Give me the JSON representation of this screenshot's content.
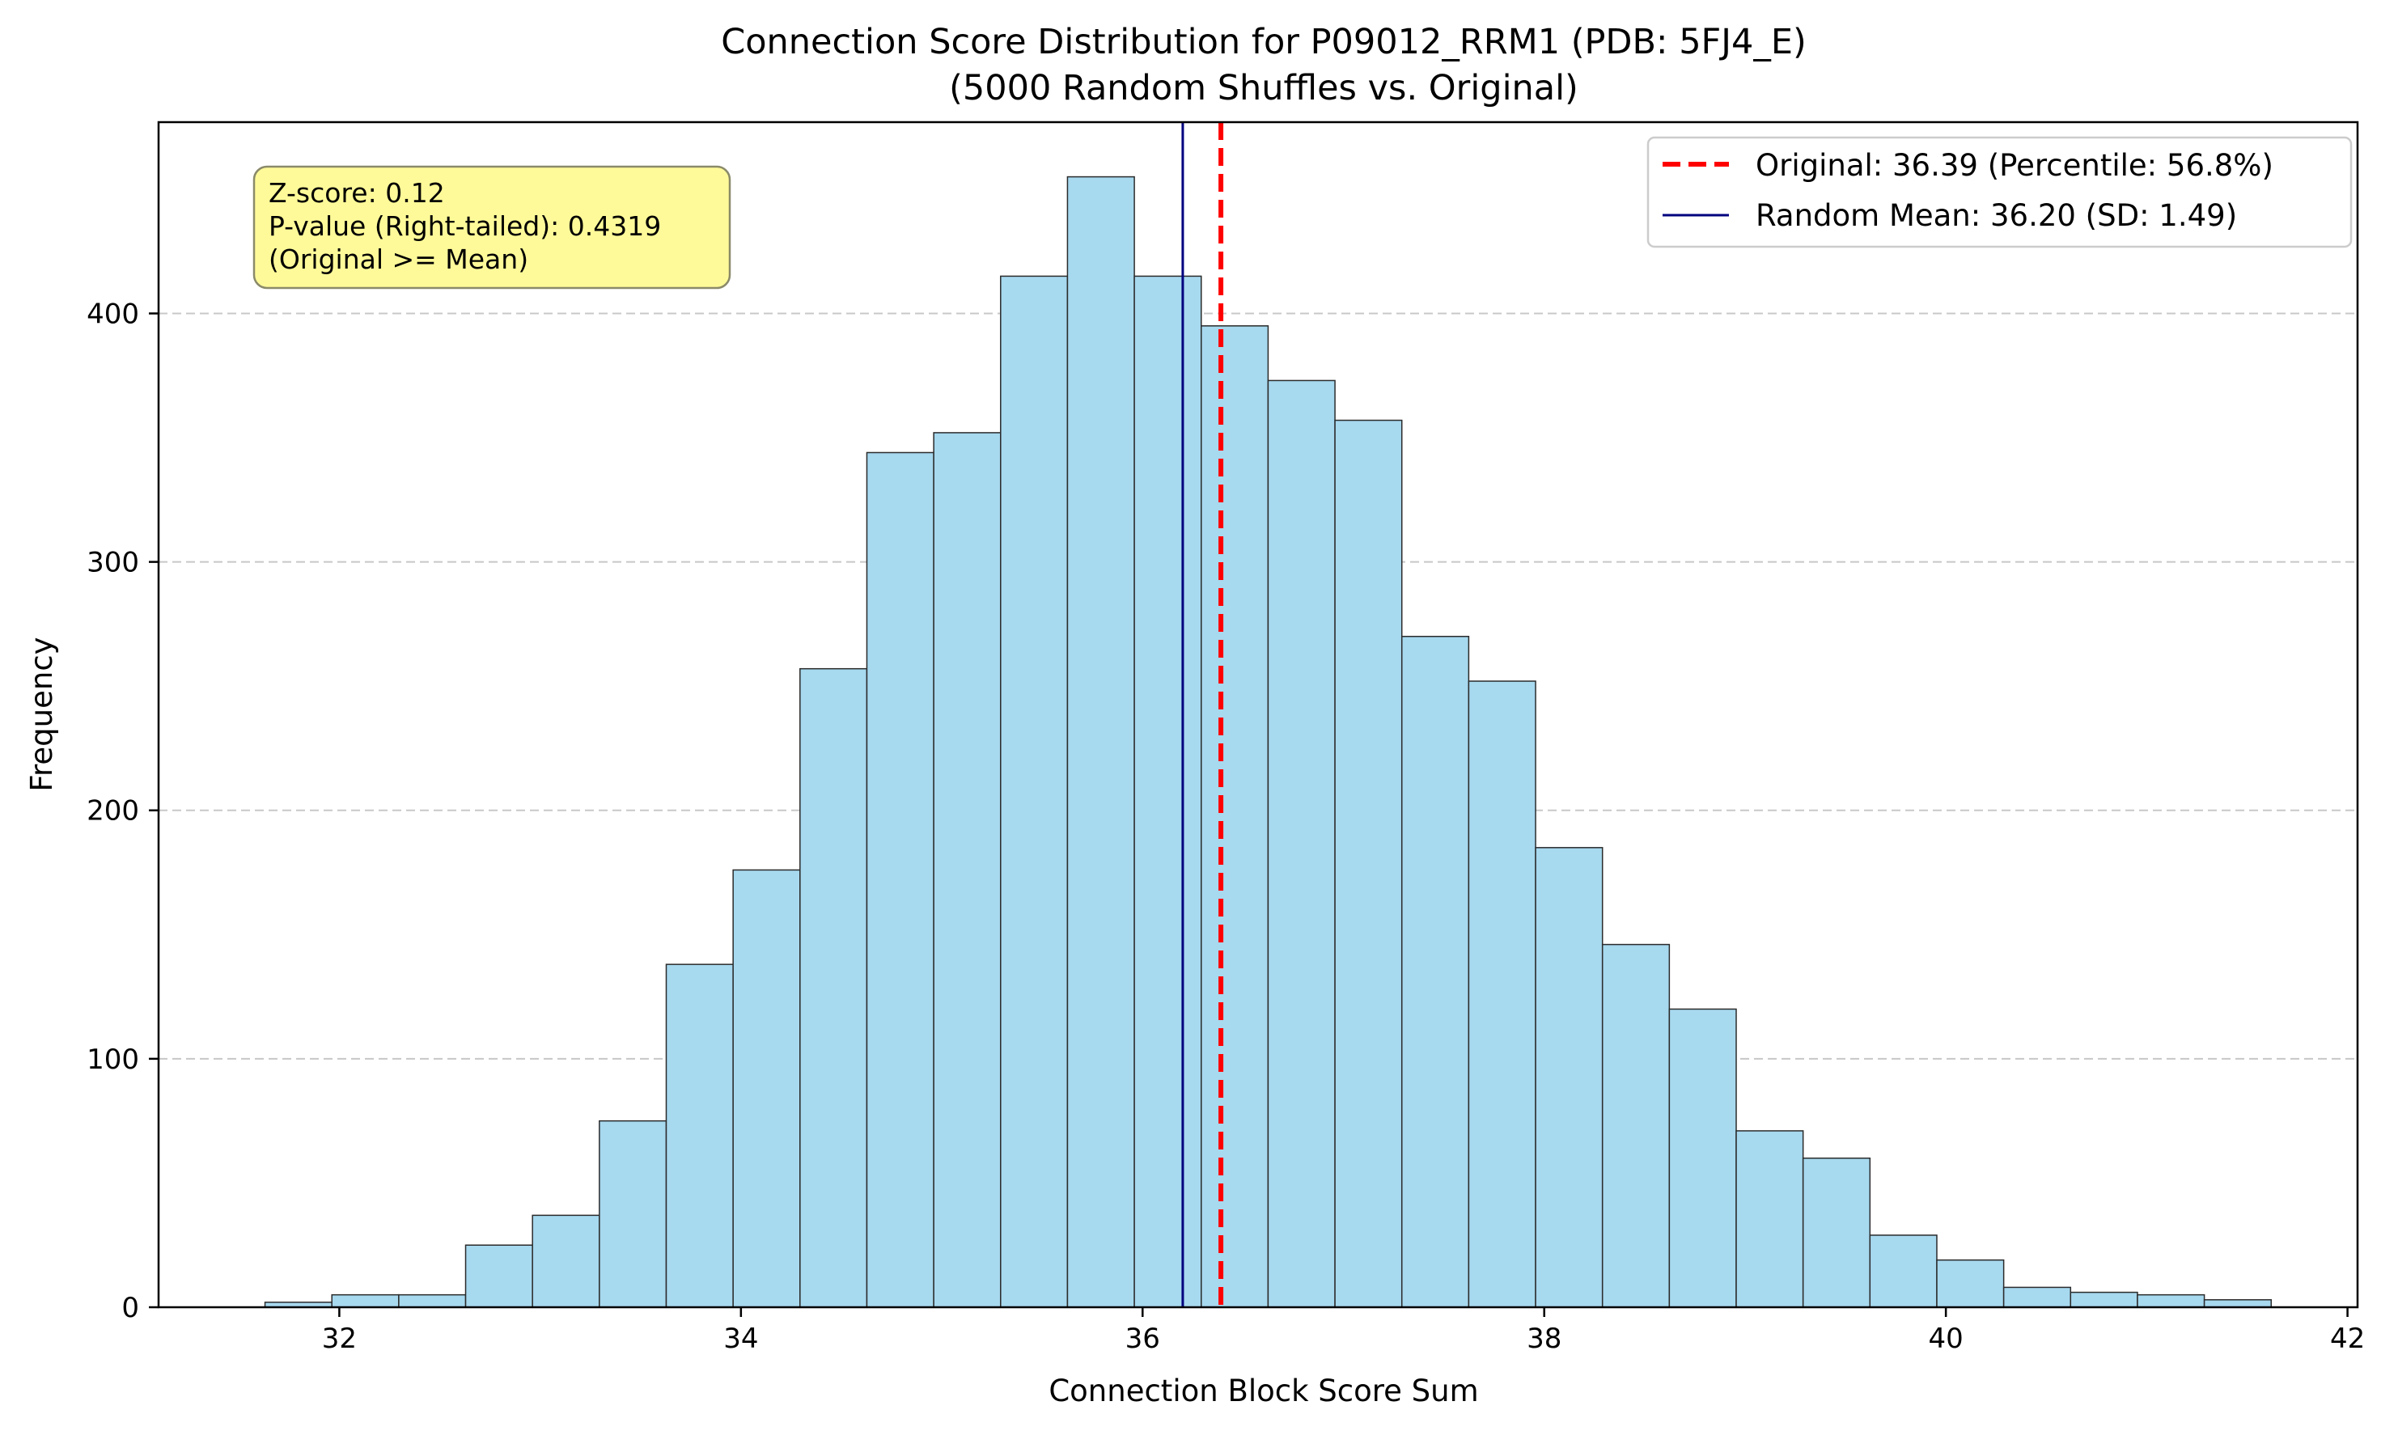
{
  "chart_data": {
    "type": "bar",
    "title": "Connection Score Distribution for P09012_RRM1 (PDB: 5FJ4_E)",
    "subtitle": "(5000 Random Shuffles vs. Original)",
    "xlabel": "Connection Block Score Sum",
    "ylabel": "Frequency",
    "xlim": [
      31.1,
      42.05
    ],
    "ylim": [
      0,
      477
    ],
    "xticks": [
      32,
      34,
      36,
      38,
      40,
      42
    ],
    "yticks": [
      0,
      100,
      200,
      300,
      400
    ],
    "grid": "horizontal-dashed",
    "bar_color": "#a7d9ef",
    "bar_edge_color": "#2b2b2b",
    "bins": {
      "start": 31.63,
      "width": 0.333,
      "counts": [
        2,
        5,
        5,
        25,
        37,
        75,
        138,
        176,
        257,
        344,
        352,
        415,
        455,
        415,
        395,
        373,
        357,
        270,
        252,
        185,
        146,
        120,
        71,
        60,
        29,
        19,
        8,
        6,
        5,
        3
      ]
    },
    "lines": [
      {
        "name": "original",
        "x": 36.39,
        "color": "#ff0000",
        "style": "dashed"
      },
      {
        "name": "random-mean",
        "x": 36.2,
        "color": "#000080",
        "style": "solid"
      }
    ],
    "legend": {
      "position": "top-right",
      "entries": [
        "Original: 36.39 (Percentile: 56.8%)",
        "Random Mean: 36.20 (SD: 1.49)"
      ]
    },
    "annotation": {
      "position": "top-left",
      "background": "#fffa94",
      "lines": [
        "Z-score: 0.12",
        "P-value (Right-tailed): 0.4319",
        "(Original >= Mean)"
      ]
    }
  }
}
